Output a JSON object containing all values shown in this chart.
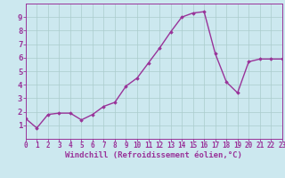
{
  "x": [
    0,
    1,
    2,
    3,
    4,
    5,
    6,
    7,
    8,
    9,
    10,
    11,
    12,
    13,
    14,
    15,
    16,
    17,
    18,
    19,
    20,
    21,
    22,
    23
  ],
  "y": [
    1.5,
    0.8,
    1.8,
    1.9,
    1.9,
    1.4,
    1.8,
    2.4,
    2.7,
    3.9,
    4.5,
    5.6,
    6.7,
    7.9,
    9.0,
    9.3,
    9.4,
    6.3,
    4.2,
    3.4,
    5.7,
    5.9,
    5.9,
    5.9
  ],
  "xlim": [
    0,
    23
  ],
  "ylim": [
    0,
    10
  ],
  "yticks": [
    1,
    2,
    3,
    4,
    5,
    6,
    7,
    8,
    9
  ],
  "xticks": [
    0,
    1,
    2,
    3,
    4,
    5,
    6,
    7,
    8,
    9,
    10,
    11,
    12,
    13,
    14,
    15,
    16,
    17,
    18,
    19,
    20,
    21,
    22,
    23
  ],
  "xlabel": "Windchill (Refroidissement éolien,°C)",
  "line_color": "#993399",
  "marker": "D",
  "marker_size": 1.8,
  "line_width": 1.0,
  "bg_color": "#cce8ef",
  "grid_color": "#aacccc",
  "axis_color": "#993399",
  "tick_color": "#993399",
  "label_color": "#993399",
  "xlabel_fontsize": 6.5,
  "ytick_fontsize": 6.5,
  "xtick_fontsize": 5.5
}
